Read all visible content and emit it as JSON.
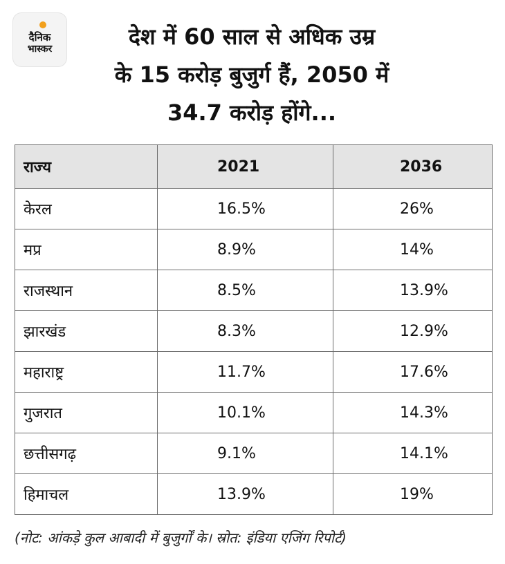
{
  "brand": {
    "line1": "दैनिक",
    "line2": "भास्कर",
    "accent": "#f2a01c"
  },
  "headline": {
    "line1": "देश में 60 साल से अधिक उम्र",
    "line2": "के 15 करोड़ बुजुर्ग हैं, 2050 में",
    "line3": "34.7 करोड़ होंगे..."
  },
  "table": {
    "headers": [
      "राज्य",
      "2021",
      "2036"
    ],
    "rows": [
      [
        "केरल",
        "16.5%",
        "26%"
      ],
      [
        "मप्र",
        "8.9%",
        "14%"
      ],
      [
        "राजस्थान",
        "8.5%",
        "13.9%"
      ],
      [
        "झारखंड",
        "8.3%",
        "12.9%"
      ],
      [
        "महाराष्ट्र",
        "11.7%",
        "17.6%"
      ],
      [
        "गुजरात",
        "10.1%",
        "14.3%"
      ],
      [
        "छत्तीसगढ़",
        "9.1%",
        "14.1%"
      ],
      [
        "हिमाचल",
        "13.9%",
        "19%"
      ]
    ]
  },
  "footnote": "(नोट: आंकड़े कुल आबादी में बुजुर्गों के। स्रोत: इंडिया एजिंग रिपोर्ट)"
}
